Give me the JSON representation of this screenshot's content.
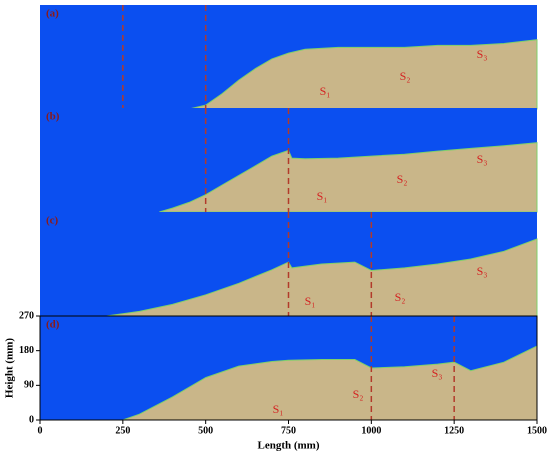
{
  "chart_data": [
    {
      "type": "area",
      "label": "(a)",
      "background": "#0b4ff0",
      "fill": "#c9b689",
      "line_color": "#b23a2a",
      "x": [
        450,
        500,
        550,
        600,
        650,
        700,
        750,
        800,
        900,
        1000,
        1100,
        1200,
        1300,
        1400,
        1500
      ],
      "values": [
        0,
        10,
        40,
        75,
        105,
        130,
        145,
        155,
        160,
        160,
        160,
        165,
        165,
        170,
        180
      ],
      "xlim": [
        0,
        1500
      ],
      "ylim": [
        0,
        270
      ],
      "vlines": [
        250,
        500
      ],
      "annotations": [
        "S₁",
        "S₂",
        "S₃"
      ]
    },
    {
      "type": "area",
      "label": "(b)",
      "background": "#0b4ff0",
      "fill": "#c9b689",
      "line_color": "#b23a2a",
      "x": [
        360,
        400,
        450,
        500,
        550,
        600,
        650,
        700,
        750,
        760,
        800,
        900,
        1000,
        1100,
        1200,
        1300,
        1400,
        1500
      ],
      "values": [
        0,
        10,
        25,
        45,
        70,
        95,
        120,
        145,
        160,
        140,
        138,
        140,
        145,
        150,
        158,
        165,
        172,
        180
      ],
      "xlim": [
        0,
        1500
      ],
      "ylim": [
        0,
        270
      ],
      "vlines": [
        500,
        750
      ],
      "annotations": [
        "S₁",
        "S₂",
        "S₃"
      ]
    },
    {
      "type": "area",
      "label": "(c)",
      "background": "#0b4ff0",
      "fill": "#c9b689",
      "line_color": "#b23a2a",
      "x": [
        200,
        300,
        400,
        500,
        600,
        700,
        750,
        760,
        850,
        950,
        1000,
        1100,
        1200,
        1300,
        1400,
        1500
      ],
      "values": [
        0,
        12,
        30,
        55,
        85,
        120,
        140,
        125,
        135,
        140,
        118,
        125,
        135,
        148,
        168,
        200
      ],
      "xlim": [
        0,
        1500
      ],
      "ylim": [
        0,
        270
      ],
      "vlines": [
        750,
        1000
      ],
      "annotations": [
        "S₁",
        "S₂",
        "S₃"
      ]
    },
    {
      "type": "area",
      "label": "(d)",
      "background": "#0b4ff0",
      "fill": "#c9b689",
      "line_color": "#b23a2a",
      "x": [
        250,
        300,
        400,
        500,
        600,
        700,
        750,
        850,
        950,
        1000,
        1100,
        1200,
        1250,
        1300,
        1400,
        1500
      ],
      "values": [
        0,
        15,
        60,
        110,
        140,
        152,
        155,
        157,
        157,
        135,
        138,
        145,
        150,
        128,
        150,
        192
      ],
      "xlim": [
        0,
        1500
      ],
      "ylim": [
        0,
        270
      ],
      "vlines": [
        1000,
        1250
      ],
      "annotations": [
        "S₁",
        "S₂",
        "S₃"
      ],
      "xticks": [
        0,
        250,
        500,
        750,
        1000,
        1250,
        1500
      ],
      "yticks": [
        0,
        90,
        180,
        270
      ],
      "xlabel": "Length (mm)",
      "ylabel": "Height (mm)"
    }
  ]
}
